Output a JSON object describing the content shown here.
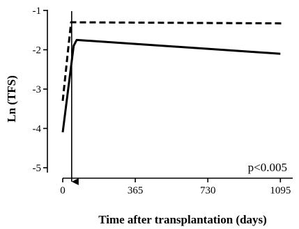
{
  "chart_data": {
    "type": "line",
    "title": "",
    "xlabel": "Time after transplantation (days)",
    "ylabel": "Ln (TFS)",
    "xlim": [
      0,
      1150
    ],
    "ylim": [
      -5.1,
      -1
    ],
    "xticks": [
      0,
      365,
      730,
      1095
    ],
    "yticks": [
      -5,
      -4,
      -3,
      -2,
      -1
    ],
    "grid": false,
    "legend": "none",
    "series": [
      {
        "style": "dashed",
        "color": "#000000",
        "points": [
          [
            0,
            -3.3
          ],
          [
            28,
            -1.95
          ],
          [
            42,
            -1.3
          ],
          [
            1110,
            -1.33
          ]
        ]
      },
      {
        "style": "solid",
        "color": "#000000",
        "points": [
          [
            0,
            -4.1
          ],
          [
            55,
            -1.9
          ],
          [
            70,
            -1.75
          ],
          [
            1095,
            -2.1
          ]
        ]
      }
    ],
    "reference_line": {
      "x": 45,
      "style": "arrow-down",
      "color": "#000000"
    },
    "annotations": [
      {
        "text": "p<0.005",
        "position": "bottom-right"
      }
    ]
  }
}
